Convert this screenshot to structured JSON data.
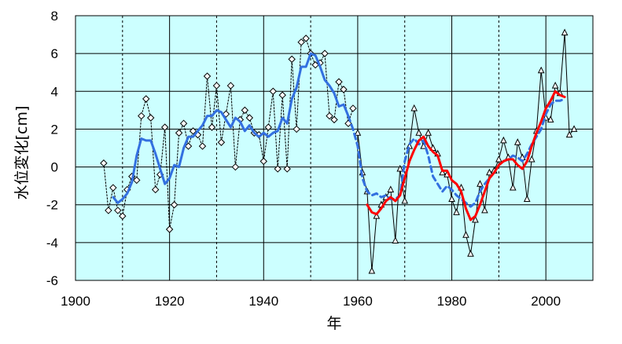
{
  "chart_data": {
    "type": "line",
    "title": "",
    "xlabel": "年",
    "ylabel": "水位変化[cm]",
    "xlim": [
      1900,
      2010
    ],
    "ylim": [
      -6,
      8
    ],
    "x_ticks": [
      1900,
      1920,
      1940,
      1960,
      1980,
      2000
    ],
    "y_ticks": [
      -6,
      -4,
      -2,
      0,
      2,
      4,
      6,
      8
    ],
    "grid": true,
    "background": "#ccffff",
    "series": [
      {
        "name": "",
        "style": "dotted-black-diamond-markers",
        "color": "#000000",
        "x": [
          1906,
          1907,
          1908,
          1909,
          1910,
          1911,
          1912,
          1913,
          1914,
          1915,
          1916,
          1917,
          1918,
          1919,
          1920,
          1921,
          1922,
          1923,
          1924,
          1925,
          1926,
          1927,
          1928,
          1929,
          1930,
          1931,
          1932,
          1933,
          1934,
          1935,
          1936,
          1937,
          1938,
          1939,
          1940,
          1941,
          1942,
          1943,
          1944,
          1945,
          1946,
          1947,
          1948,
          1949,
          1950,
          1951,
          1952,
          1953,
          1954,
          1955,
          1956,
          1957,
          1958,
          1959
        ],
        "values": [
          0.2,
          -2.3,
          -1.1,
          -2.3,
          -2.6,
          -1.2,
          -0.5,
          -0.7,
          2.7,
          3.6,
          2.6,
          -1.2,
          -0.4,
          2.1,
          -3.3,
          -2.0,
          1.8,
          2.3,
          1.1,
          1.9,
          1.7,
          1.1,
          4.8,
          2.1,
          4.3,
          1.3,
          2.8,
          4.3,
          0.0,
          2.5,
          3.0,
          2.6,
          1.8,
          1.7,
          0.3,
          2.1,
          4.0,
          -0.1,
          3.8,
          -0.1,
          5.7,
          2.0,
          6.6,
          6.8,
          6.0,
          5.4,
          5.5,
          6.0,
          2.7,
          2.5,
          4.5,
          4.1,
          2.3,
          3.1
        ]
      },
      {
        "name": "",
        "style": "thin-black-triangle-markers",
        "color": "#000000",
        "x": [
          1960,
          1961,
          1962,
          1963,
          1964,
          1965,
          1966,
          1967,
          1968,
          1969,
          1970,
          1971,
          1972,
          1973,
          1974,
          1975,
          1976,
          1977,
          1978,
          1979,
          1980,
          1981,
          1982,
          1983,
          1984,
          1985,
          1986,
          1987,
          1988,
          1989,
          1990,
          1991,
          1992,
          1993,
          1994,
          1995,
          1996,
          1997,
          1998,
          1999,
          2000,
          2001,
          2002,
          2003,
          2004,
          2005,
          2006
        ],
        "values": [
          1.8,
          -0.3,
          -1.3,
          -5.5,
          -2.6,
          -2.0,
          -1.6,
          -1.2,
          -3.9,
          -0.1,
          -1.8,
          1.1,
          3.1,
          1.8,
          1.1,
          1.8,
          1.0,
          0.7,
          -0.3,
          -0.4,
          -1.7,
          -2.4,
          -1.1,
          -3.6,
          -4.6,
          -2.8,
          -0.9,
          -2.3,
          -0.3,
          -0.2,
          0.4,
          1.4,
          0.5,
          -1.1,
          1.3,
          0.5,
          -1.7,
          0.4,
          1.9,
          5.1,
          2.6,
          2.5,
          4.3,
          3.9,
          7.1,
          1.7,
          2.0
        ]
      },
      {
        "name": "",
        "style": "solid-blue-thick",
        "color": "#3370e0",
        "x": [
          1908,
          1909,
          1910,
          1911,
          1912,
          1913,
          1914,
          1915,
          1916,
          1917,
          1918,
          1919,
          1920,
          1921,
          1922,
          1923,
          1924,
          1925,
          1926,
          1927,
          1928,
          1929,
          1930,
          1931,
          1932,
          1933,
          1934,
          1935,
          1936,
          1937,
          1938,
          1939,
          1940,
          1941,
          1942,
          1943,
          1944,
          1945,
          1946,
          1947,
          1948,
          1949,
          1950,
          1951,
          1952,
          1953,
          1954,
          1955,
          1956,
          1957,
          1958
        ],
        "values": [
          -1.6,
          -1.9,
          -1.7,
          -1.4,
          -0.8,
          0.6,
          1.5,
          1.4,
          1.4,
          0.7,
          -0.1,
          -0.9,
          -0.6,
          0.1,
          0.0,
          1.0,
          1.6,
          1.6,
          1.9,
          2.2,
          2.7,
          2.7,
          3.0,
          2.9,
          2.5,
          2.1,
          2.6,
          2.4,
          1.9,
          2.2,
          1.8,
          1.6,
          1.8,
          1.6,
          1.8,
          1.9,
          2.6,
          2.3,
          3.6,
          4.2,
          5.3,
          5.3,
          6.0,
          5.9,
          5.3,
          4.6,
          4.3,
          3.9,
          3.2,
          3.3,
          2.7
        ]
      },
      {
        "name": "",
        "style": "dashed-blue-thick",
        "color": "#3370e0",
        "x": [
          1958,
          1959,
          1960,
          1961,
          1962,
          1963,
          1964,
          1965,
          1966,
          1967,
          1968,
          1969,
          1970,
          1971,
          1972,
          1973,
          1974,
          1975,
          1976,
          1977,
          1978,
          1979,
          1980,
          1981,
          1982,
          1983,
          1984,
          1985,
          1986,
          1987,
          1988,
          1989,
          1990,
          1991,
          1992,
          1993,
          1994,
          1995,
          1996,
          1997,
          1998,
          1999,
          2000,
          2001,
          2002,
          2003,
          2004
        ],
        "values": [
          2.7,
          2.0,
          1.1,
          -0.6,
          -1.3,
          -1.5,
          -1.4,
          -1.6,
          -1.5,
          -1.7,
          -1.7,
          -1.5,
          0.3,
          1.2,
          1.5,
          1.2,
          1.4,
          0.6,
          -0.5,
          -0.9,
          -1.3,
          -1.0,
          -1.2,
          -1.5,
          -1.7,
          -1.9,
          -2.1,
          -1.9,
          -1.3,
          -0.9,
          -0.6,
          -0.3,
          0.1,
          0.3,
          0.4,
          0.6,
          0.5,
          0.3,
          0.7,
          1.2,
          1.6,
          2.0,
          2.8,
          3.3,
          3.5,
          3.5,
          3.6
        ]
      },
      {
        "name": "",
        "style": "solid-red-thick",
        "color": "#ff0000",
        "x": [
          1962,
          1963,
          1964,
          1965,
          1966,
          1967,
          1968,
          1969,
          1970,
          1971,
          1972,
          1973,
          1974,
          1975,
          1976,
          1977,
          1978,
          1979,
          1980,
          1981,
          1982,
          1983,
          1984,
          1985,
          1986,
          1987,
          1988,
          1989,
          1990,
          1991,
          1992,
          1993,
          1994,
          1995,
          1996,
          1997,
          1998,
          1999,
          2000,
          2001,
          2002,
          2003,
          2004
        ],
        "values": [
          -2.0,
          -2.4,
          -2.5,
          -2.2,
          -1.8,
          -1.6,
          -1.8,
          -1.5,
          -0.6,
          0.3,
          0.9,
          1.4,
          1.6,
          1.1,
          0.8,
          0.6,
          -0.2,
          -0.2,
          -0.7,
          -0.9,
          -1.3,
          -2.2,
          -2.8,
          -2.6,
          -2.0,
          -1.3,
          -0.6,
          -0.3,
          0.1,
          0.3,
          0.4,
          0.4,
          0.1,
          -0.1,
          0.3,
          1.1,
          1.8,
          2.4,
          3.1,
          3.5,
          4.0,
          3.8,
          3.7
        ]
      }
    ]
  }
}
